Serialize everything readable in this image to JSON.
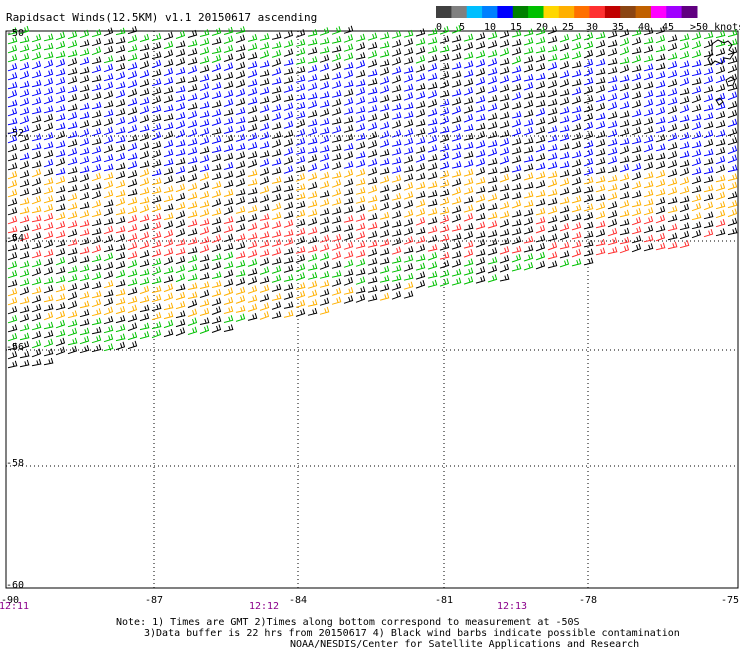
{
  "title": "Rapidsact Winds(12.5KM) v1.1 20150617 ascending",
  "colorbar": {
    "colors": [
      "#404040",
      "#808080",
      "#00bfff",
      "#0080ff",
      "#0000ff",
      "#008000",
      "#00c000",
      "#ffd700",
      "#ffb000",
      "#ff7000",
      "#ff3030",
      "#c00000",
      "#8b4513",
      "#c06000",
      "#ff00ff",
      "#a000ff",
      "#600080"
    ],
    "labels": [
      "0",
      "5",
      "10",
      "15",
      "20",
      "25",
      "30",
      "35",
      "40",
      "45",
      ">50 knots"
    ]
  },
  "lat_labels": [
    "-50",
    "-52",
    "-54",
    "-56",
    "-58",
    "-60"
  ],
  "lon_labels": [
    "-90",
    "-87",
    "-84",
    "-81",
    "-78",
    "-75"
  ],
  "time_labels": [
    "12:11",
    "12:12",
    "12:13"
  ],
  "notes": [
    "Note: 1) Times are GMT 2)Times along bottom correspond to measurement at -50S",
    "3)Data buffer is 22 hrs from 20150617 4) Black wind barbs indicate possible contamination",
    "NOAA/NESDIS/Center for Satellite Applications and Research"
  ],
  "wind_swath": {
    "lat_range": [
      -60,
      -50
    ],
    "lon_range": [
      -90,
      -75
    ],
    "speed_bands_knots": [
      {
        "lat_from": -50.0,
        "lat_to": -50.6,
        "speed": 15
      },
      {
        "lat_from": -50.6,
        "lat_to": -51.6,
        "speed": 10
      },
      {
        "lat_from": -51.6,
        "lat_to": -52.6,
        "speed": 10
      },
      {
        "lat_from": -52.6,
        "lat_to": -53.4,
        "speed": 25
      },
      {
        "lat_from": -53.4,
        "lat_to": -54.1,
        "speed": 35
      },
      {
        "lat_from": -54.1,
        "lat_to": -54.6,
        "speed": 15
      },
      {
        "lat_from": -54.6,
        "lat_to": -55.2,
        "speed": 25
      },
      {
        "lat_from": -55.2,
        "lat_to": -56.2,
        "speed": 15
      }
    ]
  }
}
